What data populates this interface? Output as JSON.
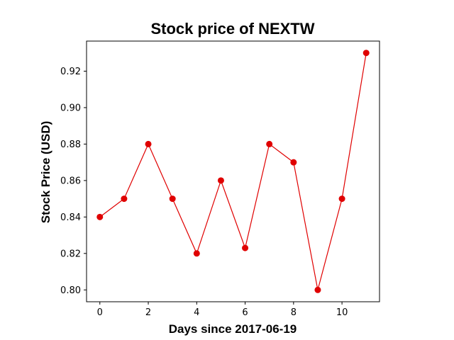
{
  "chart_data": {
    "type": "line",
    "title": "Stock price of NEXTW",
    "xlabel": "Days since 2017-06-19",
    "ylabel": "Stock Price (USD)",
    "x": [
      0,
      1,
      2,
      3,
      4,
      5,
      6,
      7,
      8,
      9,
      10,
      11
    ],
    "series": [
      {
        "values": [
          0.84,
          0.85,
          0.88,
          0.85,
          0.82,
          0.86,
          0.823,
          0.88,
          0.87,
          0.8,
          0.85,
          0.93
        ],
        "color": "#e00000",
        "marker": "circle"
      }
    ],
    "xticks": [
      0,
      2,
      4,
      6,
      8,
      10
    ],
    "xtick_labels": [
      "0",
      "2",
      "4",
      "6",
      "8",
      "10"
    ],
    "yticks": [
      0.8,
      0.82,
      0.84,
      0.86,
      0.88,
      0.9,
      0.92
    ],
    "ytick_labels": [
      "0.80",
      "0.82",
      "0.84",
      "0.86",
      "0.88",
      "0.90",
      "0.92"
    ],
    "xlim": [
      -0.55,
      11.55
    ],
    "ylim": [
      0.7935,
      0.9365
    ],
    "grid": false,
    "legend": false
  }
}
